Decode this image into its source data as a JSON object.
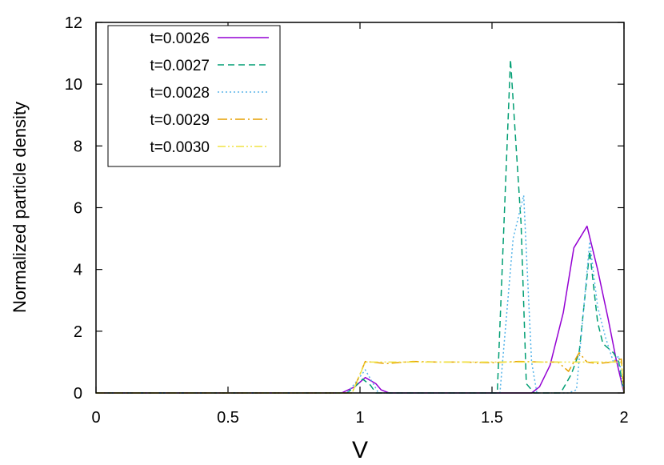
{
  "chart_data": {
    "type": "line",
    "title": "",
    "xlabel": "V",
    "ylabel": "Normalized particle density",
    "xlim": [
      0,
      2
    ],
    "ylim": [
      0,
      12
    ],
    "xticks": [
      0,
      0.5,
      1,
      1.5,
      2
    ],
    "xtick_labels": [
      "0",
      "0.5",
      "1",
      "1.5",
      "2"
    ],
    "yticks": [
      0,
      2,
      4,
      6,
      8,
      10,
      12
    ],
    "ytick_labels": [
      "0",
      "2",
      "4",
      "6",
      "8",
      "10",
      "12"
    ],
    "grid": false,
    "legend_position": "top-left",
    "series": [
      {
        "name": "t=0.0026",
        "color": "#9400d3",
        "dash": "solid",
        "points": [
          [
            0,
            0
          ],
          [
            0.93,
            0
          ],
          [
            0.98,
            0.2
          ],
          [
            1.02,
            0.5
          ],
          [
            1.06,
            0.3
          ],
          [
            1.08,
            0.1
          ],
          [
            1.11,
            0
          ],
          [
            1.65,
            0
          ],
          [
            1.68,
            0.2
          ],
          [
            1.72,
            0.9
          ],
          [
            1.77,
            2.6
          ],
          [
            1.81,
            4.7
          ],
          [
            1.86,
            5.4
          ],
          [
            1.9,
            4.0
          ],
          [
            1.94,
            2.4
          ],
          [
            1.97,
            1.1
          ],
          [
            2.0,
            0
          ]
        ]
      },
      {
        "name": "t=0.0027",
        "color": "#009e73",
        "dash": "8,5",
        "points": [
          [
            0,
            0
          ],
          [
            0.95,
            0
          ],
          [
            0.98,
            0.2
          ],
          [
            1.01,
            0.45
          ],
          [
            1.04,
            0.25
          ],
          [
            1.06,
            0
          ],
          [
            1.52,
            0
          ],
          [
            1.57,
            10.8
          ],
          [
            1.61,
            5.5
          ],
          [
            1.63,
            0.3
          ],
          [
            1.66,
            0
          ],
          [
            1.76,
            0
          ],
          [
            1.8,
            0.6
          ],
          [
            1.83,
            1.3
          ],
          [
            1.87,
            4.6
          ],
          [
            1.9,
            2.3
          ],
          [
            1.92,
            1.6
          ],
          [
            1.96,
            1.3
          ],
          [
            1.98,
            1.0
          ],
          [
            2.0,
            0
          ]
        ]
      },
      {
        "name": "t=0.0028",
        "color": "#56b4e9",
        "dash": "2,3",
        "points": [
          [
            0,
            0
          ],
          [
            0.95,
            0
          ],
          [
            0.98,
            0.3
          ],
          [
            1.02,
            0.75
          ],
          [
            1.05,
            0.3
          ],
          [
            1.07,
            0
          ],
          [
            1.53,
            0
          ],
          [
            1.56,
            3.0
          ],
          [
            1.58,
            5.0
          ],
          [
            1.62,
            6.4
          ],
          [
            1.65,
            1.0
          ],
          [
            1.67,
            0
          ],
          [
            1.79,
            0
          ],
          [
            1.82,
            0.1
          ],
          [
            1.85,
            3.0
          ],
          [
            1.87,
            4.9
          ],
          [
            1.9,
            2.8
          ],
          [
            1.93,
            1.8
          ],
          [
            1.96,
            1.0
          ],
          [
            1.98,
            1.2
          ],
          [
            2.0,
            0
          ]
        ]
      },
      {
        "name": "t=0.0029",
        "color": "#e69f00",
        "dash": "12,4,2,4",
        "points": [
          [
            0,
            0
          ],
          [
            0.97,
            0
          ],
          [
            1.02,
            1.02
          ],
          [
            1.1,
            0.95
          ],
          [
            1.2,
            1.02
          ],
          [
            1.3,
            1.0
          ],
          [
            1.4,
            1.0
          ],
          [
            1.5,
            0.98
          ],
          [
            1.6,
            1.02
          ],
          [
            1.7,
            1.0
          ],
          [
            1.75,
            1.0
          ],
          [
            1.79,
            0.7
          ],
          [
            1.83,
            1.3
          ],
          [
            1.86,
            1.0
          ],
          [
            1.9,
            0.95
          ],
          [
            1.95,
            1.0
          ],
          [
            1.99,
            1.1
          ],
          [
            2.0,
            0
          ]
        ]
      },
      {
        "name": "t=0.0030",
        "color": "#f0e442",
        "dash": "10,3,2,3,2,3",
        "points": [
          [
            0,
            0
          ],
          [
            0.97,
            0
          ],
          [
            1.02,
            1.0
          ],
          [
            1.2,
            1.0
          ],
          [
            1.4,
            1.0
          ],
          [
            1.6,
            1.0
          ],
          [
            1.8,
            1.0
          ],
          [
            1.99,
            1.0
          ],
          [
            2.0,
            0
          ]
        ]
      }
    ]
  }
}
